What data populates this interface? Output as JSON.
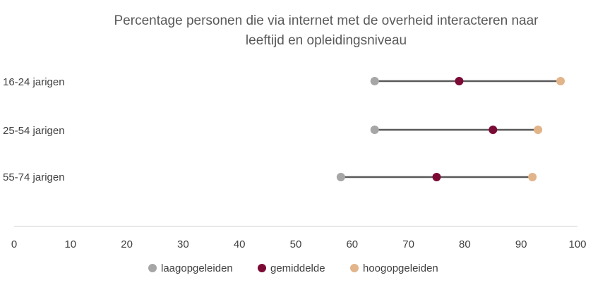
{
  "chart_data": {
    "type": "dumbbell",
    "title_lines": [
      "Percentage personen die via internet met de overheid interacteren naar",
      "leeftijd en opleidingsniveau"
    ],
    "categories": [
      "16-24 jarigen",
      "25-54 jarigen",
      "55-74 jarigen"
    ],
    "series": [
      {
        "name": "laagopgeleiden",
        "color": "#A6A6A6",
        "values": [
          64,
          64,
          58
        ]
      },
      {
        "name": "gemiddelde",
        "color": "#7B0A35",
        "values": [
          79,
          85,
          75
        ]
      },
      {
        "name": "hoogopgeleiden",
        "color": "#E2B48A",
        "values": [
          97,
          93,
          92
        ]
      }
    ],
    "xlim": [
      0,
      100
    ],
    "xticks": [
      0,
      10,
      20,
      30,
      40,
      50,
      60,
      70,
      80,
      90,
      100
    ],
    "line_color": "#595959",
    "legend_position": "bottom",
    "grid": false
  }
}
